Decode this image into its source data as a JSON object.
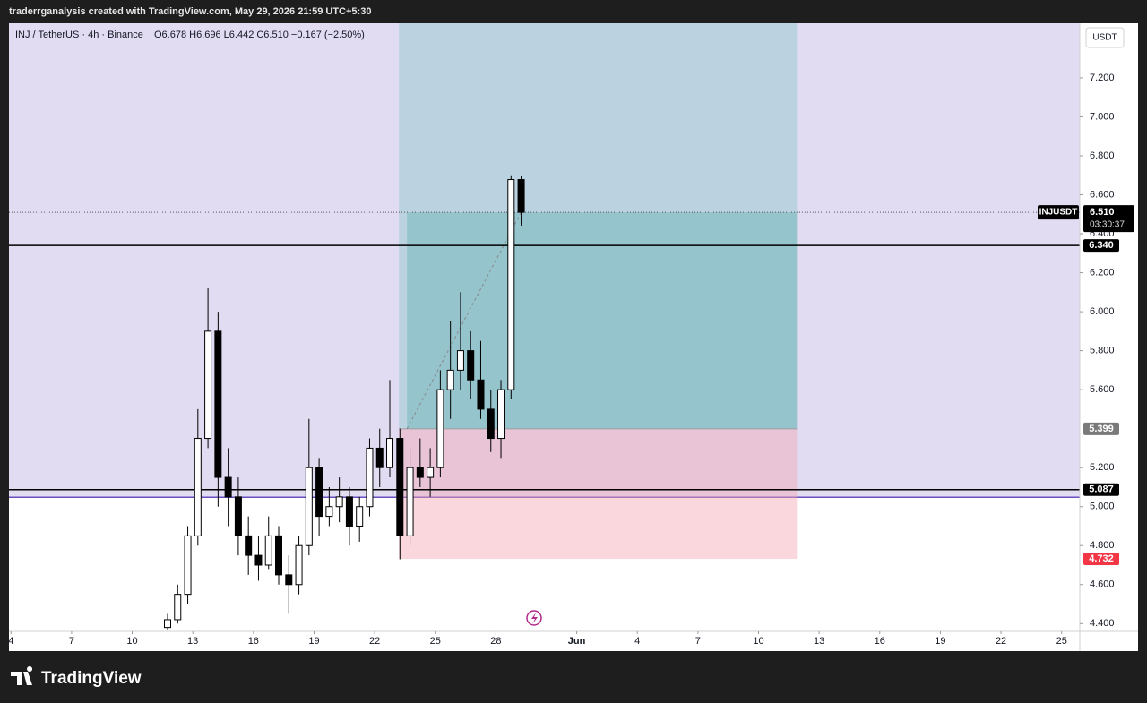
{
  "header": "traderrganalysis created with TradingView.com, May 29, 2026 21:59 UTC+5:30",
  "chart_data": {
    "type": "candlestick",
    "title": "INJ / TetherUS · 4h · Binance",
    "ohlc": "O6.678  H6.696  L6.442  C6.510  −0.167 (−2.50%)",
    "currency": "USDT",
    "x": [
      11.75,
      12.25,
      12.75,
      13.25,
      13.75,
      14.25,
      14.75,
      15.25,
      15.75,
      16.25,
      16.75,
      17.25,
      17.75,
      18.25,
      18.75,
      19.25,
      19.75,
      20.25,
      20.75,
      21.25,
      21.75,
      22.25,
      22.75,
      23.25,
      23.75,
      24.25,
      24.75,
      25.25,
      25.75,
      26.25,
      26.75,
      27.25,
      27.75,
      28.25,
      28.75,
      29.25
    ],
    "open": [
      4.38,
      4.42,
      4.55,
      4.85,
      5.35,
      5.9,
      5.15,
      5.05,
      4.85,
      4.75,
      4.7,
      4.85,
      4.65,
      4.6,
      4.8,
      5.2,
      4.95,
      5.0,
      5.05,
      4.9,
      5.0,
      5.3,
      5.2,
      5.35,
      4.85,
      5.2,
      5.15,
      5.2,
      5.6,
      5.7,
      5.8,
      5.65,
      5.5,
      5.35,
      5.6,
      6.678
    ],
    "high": [
      4.45,
      4.6,
      4.9,
      5.5,
      6.12,
      6.0,
      5.3,
      5.15,
      4.95,
      4.85,
      4.95,
      4.9,
      4.75,
      4.85,
      5.45,
      5.25,
      5.1,
      5.15,
      5.1,
      5.05,
      5.35,
      5.4,
      5.65,
      5.4,
      5.3,
      5.35,
      5.3,
      5.7,
      5.95,
      6.1,
      5.9,
      5.85,
      5.6,
      5.65,
      6.7,
      6.696
    ],
    "low": [
      4.37,
      4.4,
      4.5,
      4.8,
      5.3,
      5.0,
      4.9,
      4.75,
      4.65,
      4.62,
      4.68,
      4.6,
      4.45,
      4.55,
      4.75,
      4.85,
      4.9,
      4.92,
      4.8,
      4.82,
      4.95,
      5.1,
      5.15,
      4.73,
      4.8,
      5.1,
      5.05,
      5.15,
      5.45,
      5.6,
      5.55,
      5.45,
      5.28,
      5.25,
      5.55,
      6.442
    ],
    "close": [
      4.42,
      4.55,
      4.85,
      5.35,
      5.9,
      5.15,
      5.05,
      4.85,
      4.75,
      4.7,
      4.85,
      4.65,
      4.6,
      4.8,
      5.2,
      4.95,
      5.0,
      5.05,
      4.9,
      5.0,
      5.3,
      5.2,
      5.35,
      4.85,
      5.2,
      5.15,
      5.2,
      5.6,
      5.7,
      5.8,
      5.65,
      5.5,
      5.35,
      5.6,
      6.678,
      6.51
    ],
    "up_color": "#ffffff",
    "down_color": "#000000",
    "xlim": [
      3.9,
      56.9
    ],
    "xticks": [
      4,
      7,
      10,
      13,
      16,
      19,
      22,
      25,
      28,
      {
        "value": 32,
        "label": "Jun"
      },
      {
        "value": 35,
        "label": "4"
      },
      {
        "value": 38,
        "label": "7"
      },
      {
        "value": 41,
        "label": "10"
      },
      {
        "value": 44,
        "label": "13"
      },
      {
        "value": 47,
        "label": "16"
      },
      {
        "value": 50,
        "label": "19"
      },
      {
        "value": 53,
        "label": "22"
      },
      {
        "value": 56,
        "label": "25"
      }
    ],
    "ylim": [
      4.36,
      7.48
    ],
    "yticks": [
      {
        "value": 4.4,
        "label": "4.400"
      },
      {
        "value": 4.6,
        "label": "4.600"
      },
      {
        "value": 4.8,
        "label": "4.800"
      },
      {
        "value": 5.0,
        "label": "5.000"
      },
      {
        "value": 5.2,
        "label": "5.200"
      },
      {
        "value": 5.6,
        "label": "5.600"
      },
      {
        "value": 5.8,
        "label": "5.800"
      },
      {
        "value": 6.0,
        "label": "6.000"
      },
      {
        "value": 6.2,
        "label": "6.200"
      },
      {
        "value": 6.4,
        "label": "6.400"
      },
      {
        "value": 6.6,
        "label": "6.600"
      },
      {
        "value": 6.8,
        "label": "6.800"
      },
      {
        "value": 7.0,
        "label": "7.000"
      },
      {
        "value": 7.2,
        "label": "7.200"
      }
    ],
    "levels": [
      {
        "value": 6.34,
        "label": "6.340",
        "color": "#000000"
      },
      {
        "value": 5.087,
        "label": "5.087",
        "color": "#000000"
      }
    ],
    "zone": {
      "value": 5.048,
      "color": "#6a4fc0"
    },
    "last_price": {
      "value": 6.51,
      "label": "6.510",
      "symbol": "INJUSDT",
      "countdown": "03:30:37"
    },
    "position": {
      "start": 23.2,
      "fill_start": 23.6,
      "end": 42.9,
      "target": 7.48,
      "entry": 5.399,
      "entry_label": "5.399",
      "stop": 4.732,
      "stop_label": "4.732"
    }
  },
  "footer": "TradingView"
}
